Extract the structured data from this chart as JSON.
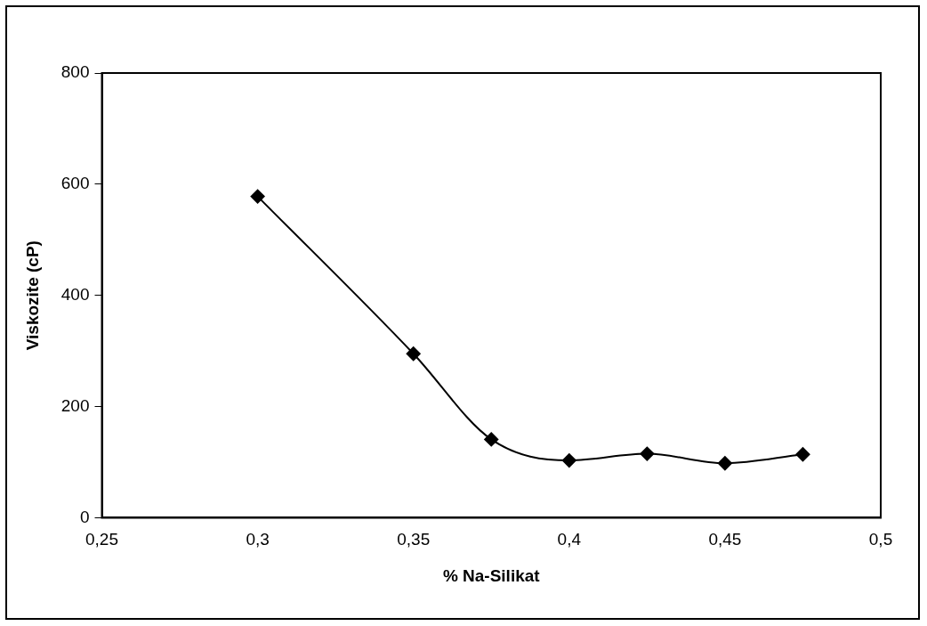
{
  "chart_data": {
    "type": "line",
    "xlabel": "% Na-Silikat",
    "ylabel": "Viskozite (cP)",
    "x": [
      0.3,
      0.35,
      0.375,
      0.4,
      0.425,
      0.45,
      0.475
    ],
    "series": [
      {
        "color": "#000000",
        "values": [
          578,
          295,
          141,
          103,
          115,
          98,
          114
        ]
      }
    ],
    "xlim": [
      0.25,
      0.5
    ],
    "xticks": [
      {
        "value": 0.25,
        "label": "0,25"
      },
      {
        "value": 0.3,
        "label": "0,3"
      },
      {
        "value": 0.35,
        "label": "0,35"
      },
      {
        "value": 0.4,
        "label": "0,4"
      },
      {
        "value": 0.45,
        "label": "0,45"
      },
      {
        "value": 0.5,
        "label": "0,5"
      }
    ],
    "ylim": [
      0,
      800
    ],
    "yticks": [
      0,
      200,
      400,
      600,
      800
    ],
    "grid": false,
    "legend": false,
    "marker": "diamond",
    "line_style": "solid"
  }
}
